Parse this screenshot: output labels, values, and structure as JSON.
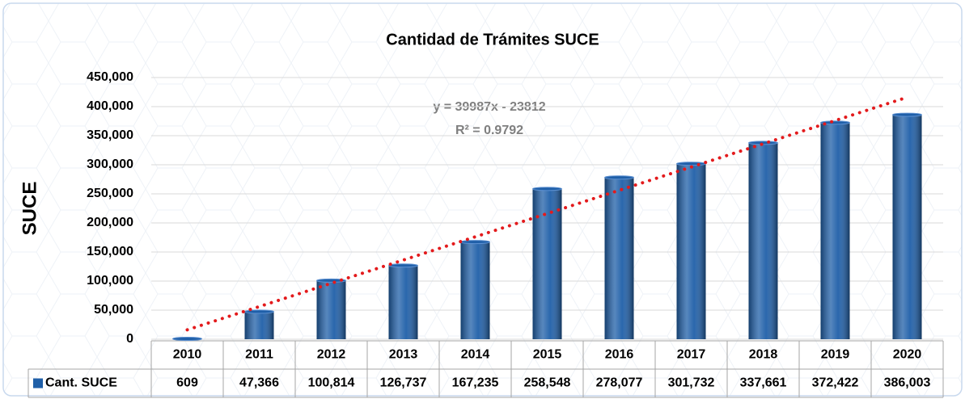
{
  "chart_data": {
    "type": "bar",
    "title": "Cantidad de Trámites SUCE",
    "y_label": "SUCE",
    "categories": [
      "2010",
      "2011",
      "2012",
      "2013",
      "2014",
      "2015",
      "2016",
      "2017",
      "2018",
      "2019",
      "2020"
    ],
    "series": [
      {
        "name": "Cant. SUCE",
        "color": "#1f5fa8",
        "values": [
          609,
          47366,
          100814,
          126737,
          167235,
          258548,
          278077,
          301732,
          337661,
          372422,
          386003
        ],
        "value_labels": [
          "609",
          "47,366",
          "100,814",
          "126,737",
          "167,235",
          "258,548",
          "278,077",
          "301,732",
          "337,661",
          "372,422",
          "386,003"
        ]
      }
    ],
    "ylim": [
      0,
      450000
    ],
    "yticks": [
      0,
      {
        "value": 50000,
        "label": "50,000"
      },
      {
        "value": 100000,
        "label": "100,000"
      },
      {
        "value": 150000,
        "label": "150,000"
      },
      {
        "value": 200000,
        "label": "200,000"
      },
      {
        "value": 250000,
        "label": "250,000"
      },
      {
        "value": 300000,
        "label": "300,000"
      },
      {
        "value": 350000,
        "label": "350,000"
      },
      {
        "value": 400000,
        "label": "400,000"
      },
      {
        "value": 450000,
        "label": "450,000"
      }
    ],
    "grid": true,
    "trendline": {
      "slope": 39987,
      "intercept": -23812,
      "color": "#e31a1c",
      "equation": "y = 39987x - 23812",
      "r2": "R² = 0.9792"
    }
  }
}
